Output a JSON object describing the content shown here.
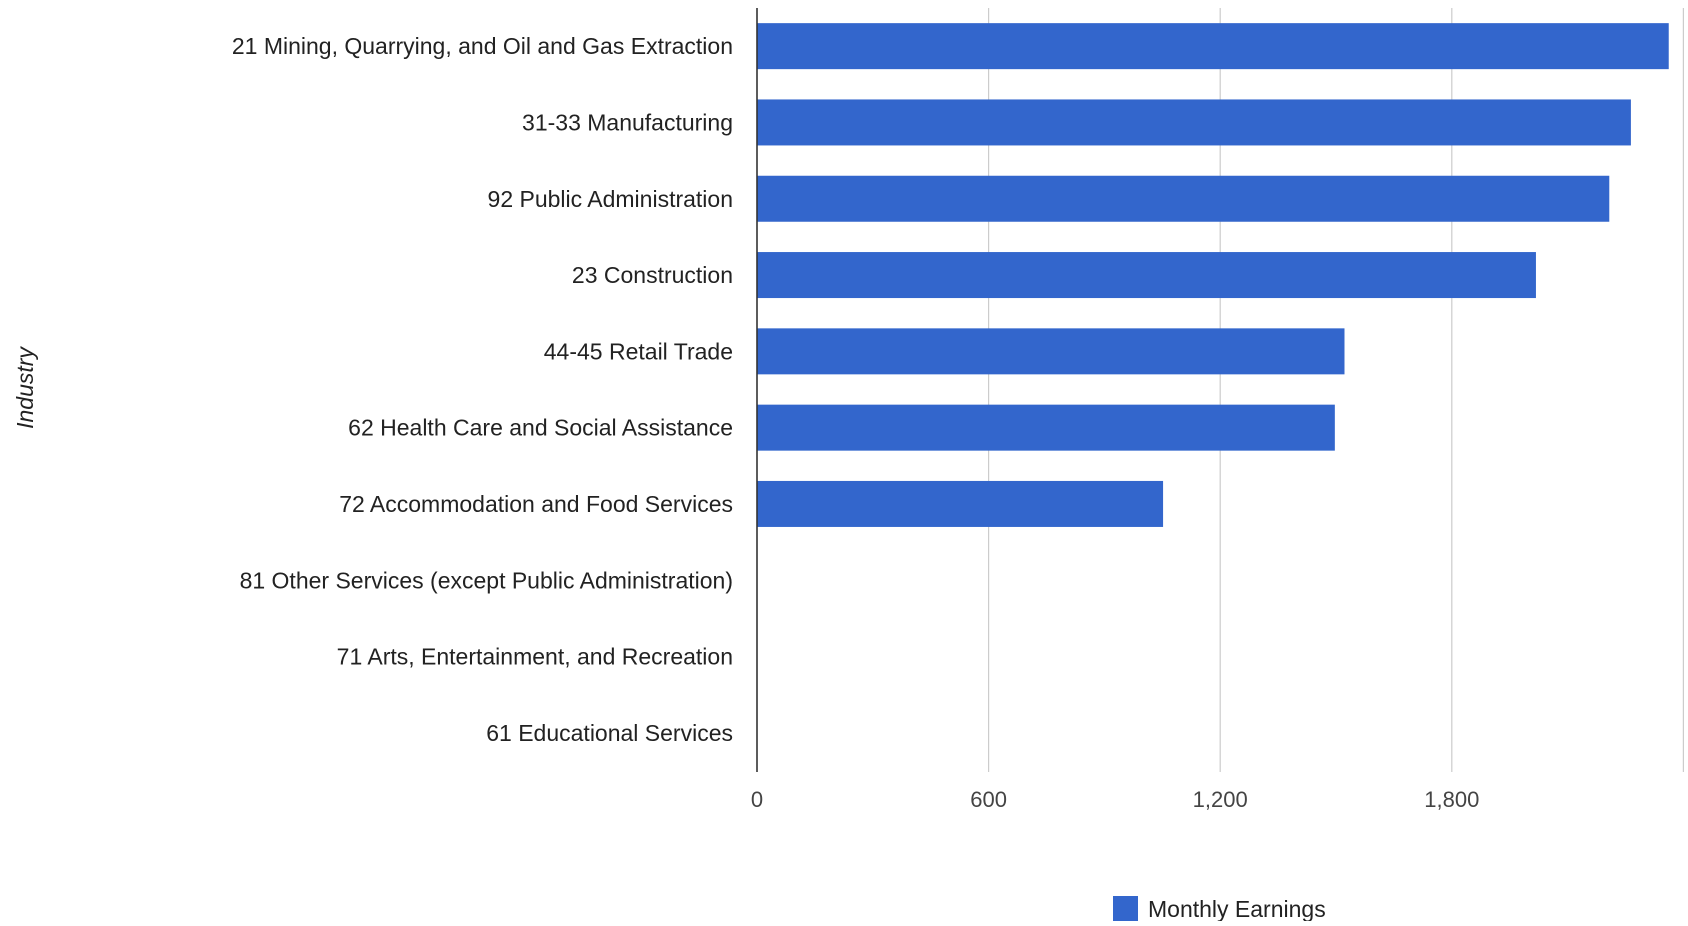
{
  "chart_data": {
    "type": "bar",
    "orientation": "horizontal",
    "title": "",
    "ylabel": "Industry",
    "xlabel": "",
    "categories": [
      "21 Mining, Quarrying, and Oil and Gas Extraction",
      "31-33 Manufacturing",
      "92 Public Administration",
      "23 Construction",
      "44-45 Retail Trade",
      "62 Health Care and Social Assistance",
      "72 Accommodation and Food Services",
      "81 Other Services (except Public Administration)",
      "71 Arts, Entertainment, and Recreation",
      "61 Educational Services"
    ],
    "series": [
      {
        "name": "Monthly Earnings",
        "color": "#3366cc",
        "values": [
          2362,
          2264,
          2208,
          2018,
          1522,
          1497,
          1052,
          null,
          null,
          null
        ]
      }
    ],
    "x_ticks": [
      {
        "value": 0,
        "label": "0"
      },
      {
        "value": 600,
        "label": "600"
      },
      {
        "value": 1200,
        "label": "1,200"
      },
      {
        "value": 1800,
        "label": "1,800"
      }
    ],
    "xlim": [
      0,
      2400
    ],
    "grid": true,
    "legend_position": "bottom",
    "colors": {
      "bar": "#3366cc",
      "grid": "#cccccc",
      "axis": "#333333",
      "text": "#222222",
      "tick_text": "#444444"
    }
  }
}
